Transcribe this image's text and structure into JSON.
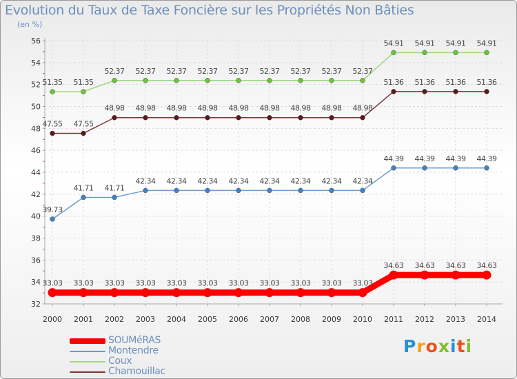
{
  "title": "Evolution du Taux de Taxe Foncière sur les Propriétés Non Bâties",
  "unit_label": "(en %)",
  "logo": {
    "text": "Proxiti",
    "colors": [
      "#2a8fd8",
      "#f0a21e",
      "#e8521c",
      "#7fbe2c",
      "#2a8fd8",
      "#e8521c",
      "#7fbe2c"
    ]
  },
  "chart_data": {
    "type": "line",
    "title": "Evolution du Taux de Taxe Foncière sur les Propriétés Non Bâties",
    "ylabel": "(en %)",
    "xlabel": "",
    "ylim": [
      32,
      56
    ],
    "yticks": [
      32,
      34,
      36,
      38,
      40,
      42,
      44,
      46,
      48,
      50,
      52,
      54,
      56
    ],
    "x": [
      "2000",
      "2001",
      "2002",
      "2003",
      "2004",
      "2005",
      "2006",
      "2007",
      "2008",
      "2009",
      "2010",
      "2011",
      "2012",
      "2013",
      "2014"
    ],
    "grid": true,
    "legend_position": "bottom-left",
    "series": [
      {
        "name": "SOUMéRAS",
        "color": "#ff0000",
        "point_color": "#ff0000",
        "bold": true,
        "values": [
          33.03,
          33.03,
          33.03,
          33.03,
          33.03,
          33.03,
          33.03,
          33.03,
          33.03,
          33.03,
          33.03,
          34.63,
          34.63,
          34.63,
          34.63
        ],
        "labels": [
          "33.03",
          "33.03",
          "33.03",
          "33.03",
          "33.03",
          "33.03",
          "33.03",
          "33.03",
          "33.03",
          "33.03",
          "33.03",
          "34.63",
          "34.63",
          "34.63",
          "34.63"
        ]
      },
      {
        "name": "Montendre",
        "color": "#6a9ccf",
        "point_color": "#3f82c9",
        "bold": false,
        "values": [
          39.73,
          41.71,
          41.71,
          42.34,
          42.34,
          42.34,
          42.34,
          42.34,
          42.34,
          42.34,
          42.34,
          44.39,
          44.39,
          44.39,
          44.39
        ],
        "labels": [
          "39.73",
          "41.71",
          "41.71",
          "42.34",
          "42.34",
          "42.34",
          "42.34",
          "42.34",
          "42.34",
          "42.34",
          "42.34",
          "44.39",
          "44.39",
          "44.39",
          "44.39"
        ]
      },
      {
        "name": "Coux",
        "color": "#9fd67f",
        "point_color": "#6fc23e",
        "bold": false,
        "values": [
          51.35,
          51.35,
          52.37,
          52.37,
          52.37,
          52.37,
          52.37,
          52.37,
          52.37,
          52.37,
          52.37,
          54.91,
          54.91,
          54.91,
          54.91
        ],
        "labels": [
          "51.35",
          "51.35",
          "52.37",
          "52.37",
          "52.37",
          "52.37",
          "52.37",
          "52.37",
          "52.37",
          "52.37",
          "52.37",
          "54.91",
          "54.91",
          "54.91",
          "54.91"
        ]
      },
      {
        "name": "Chamouillac",
        "color": "#7a3535",
        "point_color": "#5a1a1a",
        "bold": false,
        "values": [
          47.55,
          47.55,
          48.98,
          48.98,
          48.98,
          48.98,
          48.98,
          48.98,
          48.98,
          48.98,
          48.98,
          51.36,
          51.36,
          51.36,
          51.36
        ],
        "labels": [
          "47.55",
          "47.55",
          "48.98",
          "48.98",
          "48.98",
          "48.98",
          "48.98",
          "48.98",
          "48.98",
          "48.98",
          "48.98",
          "51.36",
          "51.36",
          "51.36",
          "51.36"
        ]
      }
    ]
  }
}
